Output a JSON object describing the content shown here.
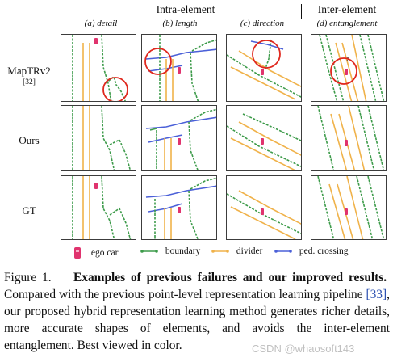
{
  "header": {
    "intra_element": "Intra-element",
    "inter_element": "Inter-element"
  },
  "columns": [
    {
      "label": "(a) detail"
    },
    {
      "label": "(b) length"
    },
    {
      "label": "(c) direction"
    },
    {
      "label": "(d) entanglement"
    }
  ],
  "rows": [
    {
      "label": "MapTRv2",
      "ref": "[32]"
    },
    {
      "label": "Ours",
      "ref": ""
    },
    {
      "label": "GT",
      "ref": ""
    }
  ],
  "entanglement_marker": "2",
  "legend": {
    "ego_car": "ego car",
    "boundary": "boundary",
    "divider": "divider",
    "ped_crossing": "ped. crossing"
  },
  "colors": {
    "boundary": "#3d9b4a",
    "divider": "#f0b24a",
    "ped_crossing": "#4b60d8",
    "ego_car": "#e0336e",
    "highlight": "#e0281e",
    "citation": "#2a4fb0"
  },
  "caption": {
    "figure_label": "Figure 1.",
    "bold_title": "Examples of previous failures and our improved results.",
    "text_before_ref": "Compared with the previous point-level representation learning pipeline",
    "ref": "[33]",
    "text_after_ref": ", our proposed hybrid representation learning method generates richer details, more accurate shapes of elements, and avoids the inter-element entanglement. Best viewed in color."
  },
  "watermark": "CSDN @whaosoft143"
}
